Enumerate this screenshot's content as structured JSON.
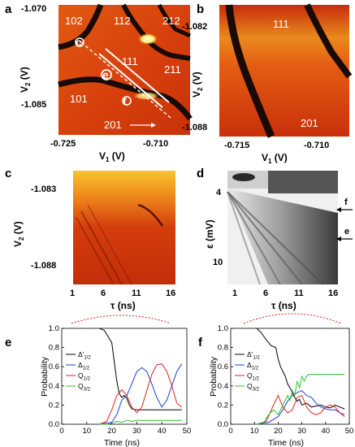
{
  "panel_a": {
    "letter": "a",
    "y_ticks": [
      "-1.070",
      "-1.085"
    ],
    "x_ticks": [
      "-0.725",
      "-0.710"
    ],
    "xlabel": "V",
    "xlabel_sub": "1",
    "xlabel_unit": " (V)",
    "ylabel": "V",
    "ylabel_sub": "2",
    "ylabel_unit": " (V)",
    "regions": [
      "102",
      "112",
      "212",
      "111",
      "211",
      "101",
      "201"
    ],
    "markers": [
      "c",
      "e",
      "f"
    ]
  },
  "panel_b": {
    "letter": "b",
    "y_ticks": [
      "-1.082",
      "-1.088"
    ],
    "x_ticks": [
      "-0.715",
      "-0.710"
    ],
    "xlabel": "V",
    "xlabel_sub": "1",
    "xlabel_unit": " (V)",
    "ylabel": "V",
    "ylabel_sub": "2",
    "ylabel_unit": " (V)",
    "regions": [
      "111",
      "201"
    ]
  },
  "panel_c": {
    "letter": "c",
    "y_ticks": [
      "-1.083",
      "-1.088"
    ],
    "x_ticks": [
      "1",
      "6",
      "11",
      "16"
    ],
    "xlabel": "τ (ns)",
    "ylabel": "V",
    "ylabel_sub": "2",
    "ylabel_unit": " (V)"
  },
  "panel_d": {
    "letter": "d",
    "y_ticks": [
      "4",
      "10"
    ],
    "x_ticks": [
      "1",
      "6",
      "11",
      "16"
    ],
    "xlabel": "τ (ns)",
    "ylabel": "ε (mV)",
    "arrows": [
      "f",
      "e"
    ]
  },
  "panel_e": {
    "letter": "e",
    "chart_data": {
      "type": "line",
      "xlabel": "Time (ns)",
      "ylabel": "Probability",
      "xlim": [
        0,
        50
      ],
      "ylim": [
        0,
        1
      ],
      "x_ticks": [
        "0",
        "10",
        "20",
        "30",
        "40",
        "50"
      ],
      "y_ticks": [
        "0.0",
        "0.2",
        "0.4",
        "0.6",
        "0.8",
        "1.0"
      ],
      "series": [
        {
          "name": "Δ'",
          "sub": "1/2",
          "color": "#000000",
          "x": [
            15,
            17,
            20,
            21,
            22,
            23,
            24,
            25,
            26,
            27,
            28,
            30,
            35,
            40,
            45,
            48
          ],
          "y": [
            1.0,
            0.98,
            0.85,
            0.65,
            0.45,
            0.32,
            0.28,
            0.3,
            0.27,
            0.2,
            0.16,
            0.15,
            0.15,
            0.15,
            0.15,
            0.15
          ]
        },
        {
          "name": "Δ",
          "sub": "1/2",
          "color": "#1f3fd6",
          "x": [
            15,
            20,
            22,
            24,
            26,
            28,
            30,
            32,
            34,
            36,
            38,
            40,
            42,
            44,
            46,
            48
          ],
          "y": [
            0.0,
            0.02,
            0.1,
            0.25,
            0.3,
            0.42,
            0.55,
            0.59,
            0.55,
            0.42,
            0.28,
            0.18,
            0.25,
            0.4,
            0.55,
            0.63
          ]
        },
        {
          "name": "Q",
          "sub": "1/2",
          "color": "#e0231c",
          "x": [
            15,
            18,
            20,
            22,
            24,
            26,
            28,
            30,
            32,
            34,
            36,
            38,
            40,
            42,
            44,
            46,
            48
          ],
          "y": [
            0.0,
            0.03,
            0.15,
            0.3,
            0.36,
            0.3,
            0.18,
            0.12,
            0.18,
            0.35,
            0.52,
            0.62,
            0.63,
            0.55,
            0.4,
            0.22,
            0.18
          ]
        },
        {
          "name": "Q",
          "sub": "3/2",
          "color": "#2fc12f",
          "x": [
            15,
            18,
            20,
            22,
            24,
            26,
            28,
            30,
            35,
            40,
            45,
            48
          ],
          "y": [
            0.0,
            0.0,
            0.01,
            0.03,
            0.02,
            0.04,
            0.03,
            0.04,
            0.04,
            0.04,
            0.04,
            0.04
          ]
        }
      ]
    }
  },
  "panel_f": {
    "letter": "f",
    "chart_data": {
      "type": "line",
      "xlabel": "Time (ns)",
      "ylabel": "Probability",
      "xlim": [
        0,
        50
      ],
      "ylim": [
        0,
        1
      ],
      "x_ticks": [
        "0",
        "10",
        "20",
        "30",
        "40",
        "50"
      ],
      "y_ticks": [
        "0.0",
        "0.2",
        "0.4",
        "0.6",
        "0.8",
        "1.0"
      ],
      "series": [
        {
          "name": "Δ'",
          "sub": "1/2",
          "color": "#000000",
          "x": [
            11,
            13,
            15,
            17,
            19,
            20,
            21,
            22,
            23,
            24,
            25,
            26,
            27,
            28,
            29,
            30,
            32,
            34,
            36,
            38,
            40,
            42,
            44,
            46,
            48
          ],
          "y": [
            1.0,
            0.95,
            0.88,
            0.82,
            0.8,
            0.68,
            0.6,
            0.55,
            0.5,
            0.42,
            0.38,
            0.33,
            0.28,
            0.24,
            0.26,
            0.2,
            0.22,
            0.18,
            0.19,
            0.2,
            0.18,
            0.17,
            0.2,
            0.18,
            0.16
          ]
        },
        {
          "name": "Δ",
          "sub": "1/2",
          "color": "#1f3fd6",
          "x": [
            11,
            16,
            20,
            22,
            24,
            26,
            28,
            30,
            32,
            34,
            36,
            38,
            40,
            42,
            44,
            46,
            48
          ],
          "y": [
            0.0,
            0.02,
            0.08,
            0.15,
            0.24,
            0.3,
            0.33,
            0.35,
            0.3,
            0.28,
            0.22,
            0.18,
            0.16,
            0.15,
            0.15,
            0.12,
            0.1
          ]
        },
        {
          "name": "Q",
          "sub": "1/2",
          "color": "#e0231c",
          "x": [
            11,
            15,
            18,
            20,
            22,
            24,
            26,
            28,
            30,
            32,
            34,
            36,
            38,
            40,
            42,
            44,
            46,
            48
          ],
          "y": [
            0.0,
            0.03,
            0.2,
            0.3,
            0.18,
            0.12,
            0.15,
            0.28,
            0.3,
            0.18,
            0.12,
            0.1,
            0.12,
            0.18,
            0.2,
            0.18,
            0.12,
            0.08
          ]
        },
        {
          "name": "Q",
          "sub": "3/2",
          "color": "#2fc12f",
          "x": [
            11,
            14,
            16,
            18,
            20,
            22,
            24,
            25,
            26,
            27,
            28,
            29,
            30,
            31,
            32,
            33,
            34,
            36,
            40,
            44,
            48
          ],
          "y": [
            0.0,
            0.02,
            0.1,
            0.15,
            0.1,
            0.2,
            0.3,
            0.25,
            0.35,
            0.3,
            0.45,
            0.38,
            0.5,
            0.45,
            0.5,
            0.52,
            0.52,
            0.52,
            0.52,
            0.52,
            0.52
          ]
        }
      ]
    }
  }
}
